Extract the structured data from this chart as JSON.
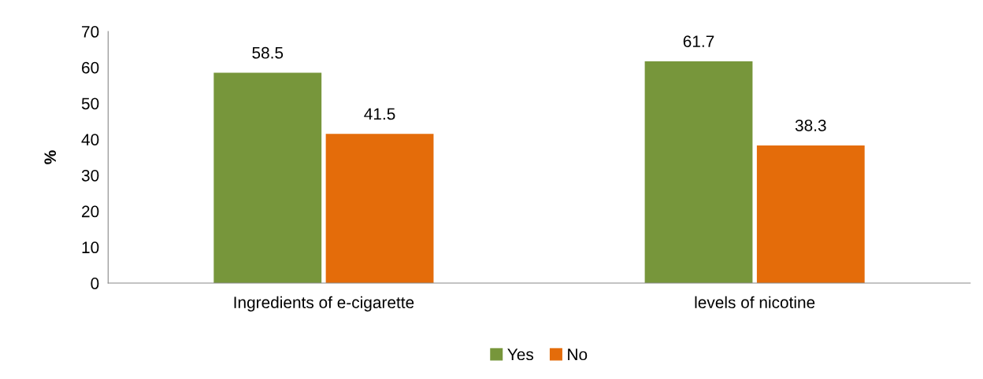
{
  "chart_data": {
    "type": "bar",
    "ylabel": "%",
    "categories": [
      "Ingredients of e-cigarette",
      "levels of nicotine"
    ],
    "series": [
      {
        "name": "Yes",
        "color": "#77963b",
        "values": [
          58.5,
          61.7
        ]
      },
      {
        "name": "No",
        "color": "#e46c0a",
        "values": [
          41.5,
          38.3
        ]
      }
    ],
    "ylim": [
      0,
      70
    ],
    "yticks": [
      0,
      10,
      20,
      30,
      40,
      50,
      60,
      70
    ],
    "data_labels": true,
    "grid": false,
    "legend": "bottom"
  }
}
